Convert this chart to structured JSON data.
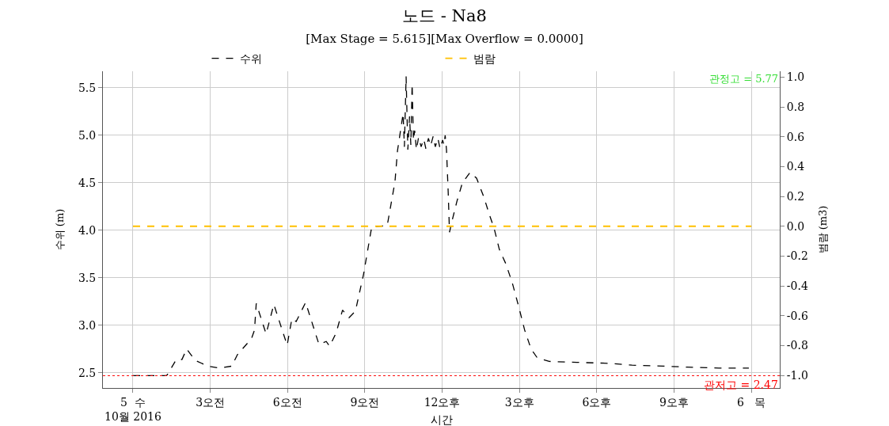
{
  "chart_data": {
    "type": "line",
    "title": "노드 - Na8",
    "subtitle": "[Max Stage = 5.615][Max Overflow = 0.0000]",
    "xlabel": "시간",
    "ylabel": "수위 (m)",
    "y2label": "범람 (m3)",
    "series": [
      {
        "name": "수위",
        "color": "#000000",
        "line_style": "dashed",
        "x": [
          "2016-10-05T00:00",
          "2016-10-05T01:17",
          "2016-10-05T01:20",
          "2016-10-05T01:41",
          "2016-10-05T01:54",
          "2016-10-05T02:05",
          "2016-10-05T02:25",
          "2016-10-05T02:55",
          "2016-10-05T03:20",
          "2016-10-05T03:50",
          "2016-10-05T04:03",
          "2016-10-05T04:36",
          "2016-10-05T04:43",
          "2016-10-05T04:47",
          "2016-10-05T05:10",
          "2016-10-05T05:28",
          "2016-10-05T05:59",
          "2016-10-05T06:10",
          "2016-10-05T06:20",
          "2016-10-05T06:42",
          "2016-10-05T07:13",
          "2016-10-05T07:30",
          "2016-10-05T07:38",
          "2016-10-05T07:53",
          "2016-10-05T08:08",
          "2016-10-05T08:23",
          "2016-10-05T08:38",
          "2016-10-05T08:57",
          "2016-10-05T09:16",
          "2016-10-05T09:25",
          "2016-10-05T09:52",
          "2016-10-05T10:10",
          "2016-10-05T10:16",
          "2016-10-05T10:29",
          "2016-10-05T10:32",
          "2016-10-05T10:36",
          "2016-10-05T10:40",
          "2016-10-05T10:44",
          "2016-10-05T10:47",
          "2016-10-05T10:50",
          "2016-10-05T10:53",
          "2016-10-05T10:56",
          "2016-10-05T11:00",
          "2016-10-05T11:05",
          "2016-10-05T11:11",
          "2016-10-05T11:17",
          "2016-10-05T11:22",
          "2016-10-05T11:28",
          "2016-10-05T11:33",
          "2016-10-05T11:39",
          "2016-10-05T11:44",
          "2016-10-05T11:50",
          "2016-10-05T11:55",
          "2016-10-05T12:01",
          "2016-10-05T12:04",
          "2016-10-05T12:07",
          "2016-10-05T12:10",
          "2016-10-05T12:14",
          "2016-10-05T12:17",
          "2016-10-05T12:23",
          "2016-10-05T12:34",
          "2016-10-05T12:47",
          "2016-10-05T13:05",
          "2016-10-05T13:20",
          "2016-10-05T13:37",
          "2016-10-05T13:51",
          "2016-10-05T14:01",
          "2016-10-05T14:13",
          "2016-10-05T14:28",
          "2016-10-05T14:43",
          "2016-10-05T14:58",
          "2016-10-05T15:12",
          "2016-10-05T15:27",
          "2016-10-05T15:41",
          "2016-10-05T16:09",
          "2016-10-05T17:13",
          "2016-10-05T18:27",
          "2016-10-05T19:22",
          "2016-10-05T20:35",
          "2016-10-05T21:31",
          "2016-10-05T22:44",
          "2016-10-05T23:54"
        ],
        "values": [
          2.47,
          2.47,
          2.48,
          2.64,
          2.64,
          2.75,
          2.63,
          2.57,
          2.55,
          2.57,
          2.69,
          2.86,
          2.95,
          3.23,
          2.91,
          3.22,
          2.79,
          3.07,
          3.04,
          3.24,
          2.8,
          2.83,
          2.78,
          2.92,
          3.16,
          3.08,
          3.15,
          3.54,
          4.04,
          4.04,
          4.05,
          4.51,
          4.84,
          5.23,
          4.88,
          5.62,
          4.85,
          5.2,
          4.9,
          5.54,
          4.95,
          5.05,
          4.85,
          4.98,
          4.88,
          4.96,
          4.86,
          4.97,
          4.89,
          4.99,
          4.88,
          4.97,
          4.86,
          4.95,
          4.9,
          5.0,
          4.85,
          4.4,
          3.98,
          4.1,
          4.3,
          4.5,
          4.61,
          4.55,
          4.35,
          4.15,
          4.02,
          3.8,
          3.65,
          3.45,
          3.2,
          2.95,
          2.75,
          2.66,
          2.62,
          2.61,
          2.6,
          2.58,
          2.57,
          2.56,
          2.55,
          2.55
        ]
      },
      {
        "name": "범람",
        "color": "#ffc000",
        "line_style": "dashed",
        "axis": "y2",
        "x": [
          "2016-10-05T00:00",
          "2016-10-06T00:00"
        ],
        "values": [
          0.0,
          0.0
        ]
      }
    ],
    "xlim": [
      "2016-10-04T22:50",
      "2016-10-06T01:06"
    ],
    "xticks": [
      {
        "value": "2016-10-05T00:00",
        "label": "5  수\n10월 2016"
      },
      {
        "value": "2016-10-05T03:00",
        "label": "3오전"
      },
      {
        "value": "2016-10-05T06:00",
        "label": "6오전"
      },
      {
        "value": "2016-10-05T09:00",
        "label": "9오전"
      },
      {
        "value": "2016-10-05T12:00",
        "label": "12오후"
      },
      {
        "value": "2016-10-05T15:00",
        "label": "3오후"
      },
      {
        "value": "2016-10-05T18:00",
        "label": "6오후"
      },
      {
        "value": "2016-10-05T21:00",
        "label": "9오후"
      },
      {
        "value": "2016-10-06T00:00",
        "label": "6   목"
      }
    ],
    "ylim": [
      2.34,
      5.675
    ],
    "yticks": [
      2.5,
      {
        "value": 3,
        "label": "3.0"
      },
      3.5,
      {
        "value": 4,
        "label": "4.0"
      },
      4.5,
      {
        "value": 5,
        "label": "5.0"
      },
      5.5
    ],
    "y2lim": [
      -1.085,
      1.04
    ],
    "y2ticks": [
      {
        "value": -1,
        "label": "-1.0"
      },
      -0.8,
      -0.6,
      -0.4,
      -0.2,
      {
        "value": 0,
        "label": "0.0"
      },
      0.2,
      0.4,
      0.6,
      0.8,
      {
        "value": 1,
        "label": "1.0"
      }
    ],
    "ref_lines": [
      {
        "axis": "y",
        "value": 2.47,
        "label": "관저고 = 2.47",
        "color": "#ff0000",
        "line_style": "dotted"
      }
    ],
    "annotations": [
      "관정고 = 5.77"
    ],
    "grid": true,
    "legend": "top",
    "marker": "none"
  }
}
